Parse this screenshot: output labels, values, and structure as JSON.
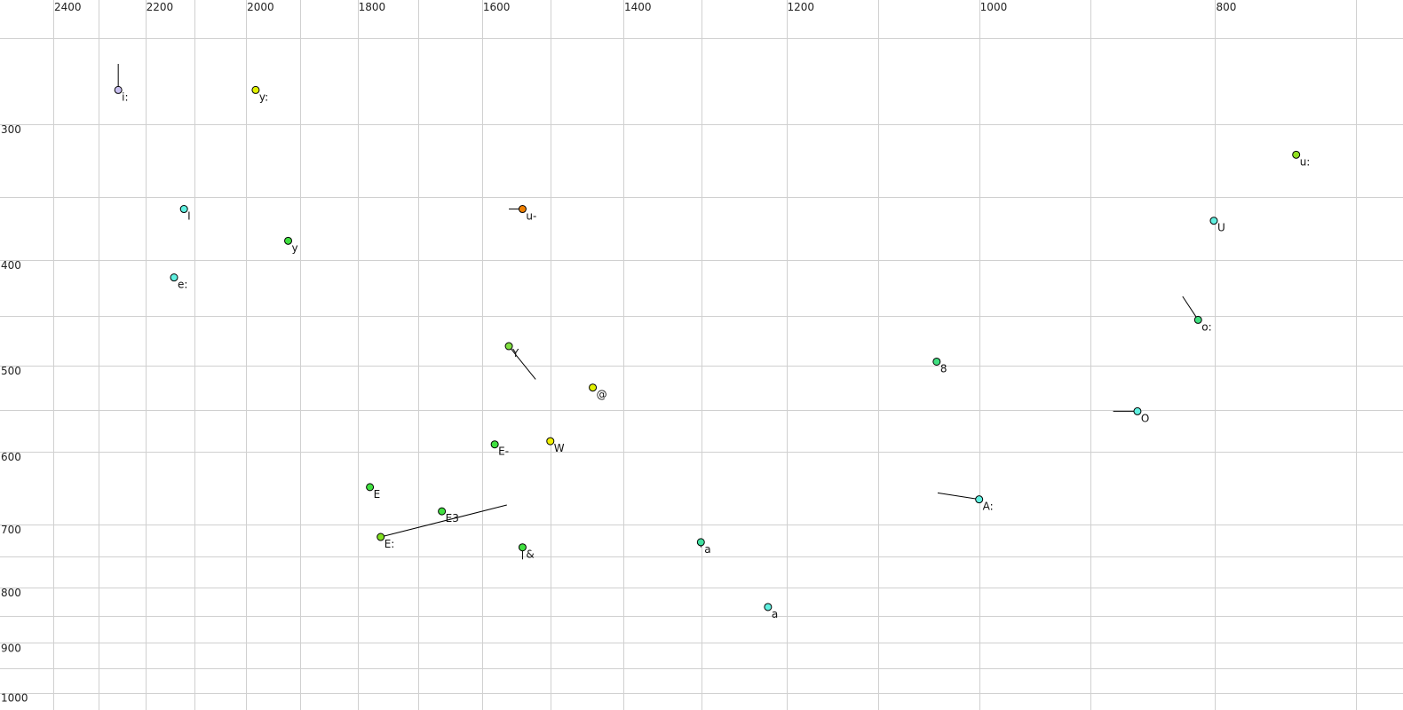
{
  "chart_data": {
    "type": "scatter",
    "title": "",
    "xlabel": "",
    "ylabel": "",
    "x_axis": {
      "quantity": "F2",
      "scale": "log",
      "reversed": true,
      "range": [
        2550,
        680
      ],
      "ticks": [
        2400,
        2200,
        2000,
        1800,
        1600,
        1400,
        1200,
        1000,
        800
      ],
      "minor_grid": [
        2300,
        2100,
        1900,
        1700,
        1500,
        1300,
        1100,
        900,
        700
      ],
      "position": "top"
    },
    "y_axis": {
      "quantity": "F1",
      "scale": "log",
      "reversed": false,
      "range": [
        230,
        1010
      ],
      "ticks": [
        300,
        400,
        500,
        600,
        700,
        800,
        900,
        1000
      ],
      "minor_grid": [
        250,
        350,
        450,
        550,
        750,
        850,
        950
      ],
      "position": "left"
    },
    "grid": true,
    "points": [
      {
        "label": "i:",
        "f2": 2257,
        "f1": 279,
        "color": "#c8c0f0",
        "trajectory": {
          "f2": 2257,
          "f1": 264
        }
      },
      {
        "label": "y:",
        "f2": 1982,
        "f1": 279,
        "color": "#e0f000"
      },
      {
        "label": "I",
        "f2": 2121,
        "f1": 359,
        "color": "#60f0e0"
      },
      {
        "label": "y",
        "f2": 1922,
        "f1": 384,
        "color": "#40e040"
      },
      {
        "label": "e:",
        "f2": 2141,
        "f1": 415,
        "color": "#60f0e0"
      },
      {
        "label": "u-",
        "f2": 1540,
        "f1": 359,
        "color": "#f08000",
        "trajectory": {
          "f2": 1560,
          "f1": 359
        }
      },
      {
        "label": "u:",
        "f2": 741,
        "f1": 320,
        "color": "#90e020"
      },
      {
        "label": "U",
        "f2": 801,
        "f1": 368,
        "color": "#60f0e0"
      },
      {
        "label": "o:",
        "f2": 813,
        "f1": 454,
        "color": "#40e080",
        "trajectory": {
          "f2": 825,
          "f1": 432
        }
      },
      {
        "label": "Y",
        "f2": 1560,
        "f1": 480,
        "color": "#80e040",
        "trajectory": {
          "f2": 1521,
          "f1": 515
        }
      },
      {
        "label": "8",
        "f2": 1041,
        "f1": 496,
        "color": "#40e080"
      },
      {
        "label": "@",
        "f2": 1441,
        "f1": 524,
        "color": "#e0f000"
      },
      {
        "label": "O",
        "f2": 861,
        "f1": 551,
        "color": "#60f0e0",
        "trajectory": {
          "f2": 881,
          "f1": 551
        }
      },
      {
        "label": "E-",
        "f2": 1581,
        "f1": 591,
        "color": "#40e040"
      },
      {
        "label": "W",
        "f2": 1500,
        "f1": 587,
        "color": "#f0f000"
      },
      {
        "label": "E",
        "f2": 1779,
        "f1": 647,
        "color": "#40e040"
      },
      {
        "label": "E3",
        "f2": 1662,
        "f1": 681,
        "color": "#40e040"
      },
      {
        "label": "E:",
        "f2": 1761,
        "f1": 719,
        "color": "#80e020",
        "trajectory": {
          "f2": 1563,
          "f1": 672
        }
      },
      {
        "label": "&",
        "f2": 1540,
        "f1": 735,
        "color": "#40e040",
        "trajectory": {
          "f2": 1540,
          "f1": 754
        }
      },
      {
        "label": "a",
        "f2": 1301,
        "f1": 727,
        "color": "#40e0a0",
        "label_color": "#707080",
        "trajectory": {
          "f2": 1301,
          "f1": 735
        }
      },
      {
        "label": "a",
        "f2": 1221,
        "f1": 834,
        "color": "#60f0e0"
      },
      {
        "label": "A:",
        "f2": 1000,
        "f1": 664,
        "color": "#60f0e0",
        "trajectory": {
          "f2": 1040,
          "f1": 655
        }
      }
    ]
  }
}
